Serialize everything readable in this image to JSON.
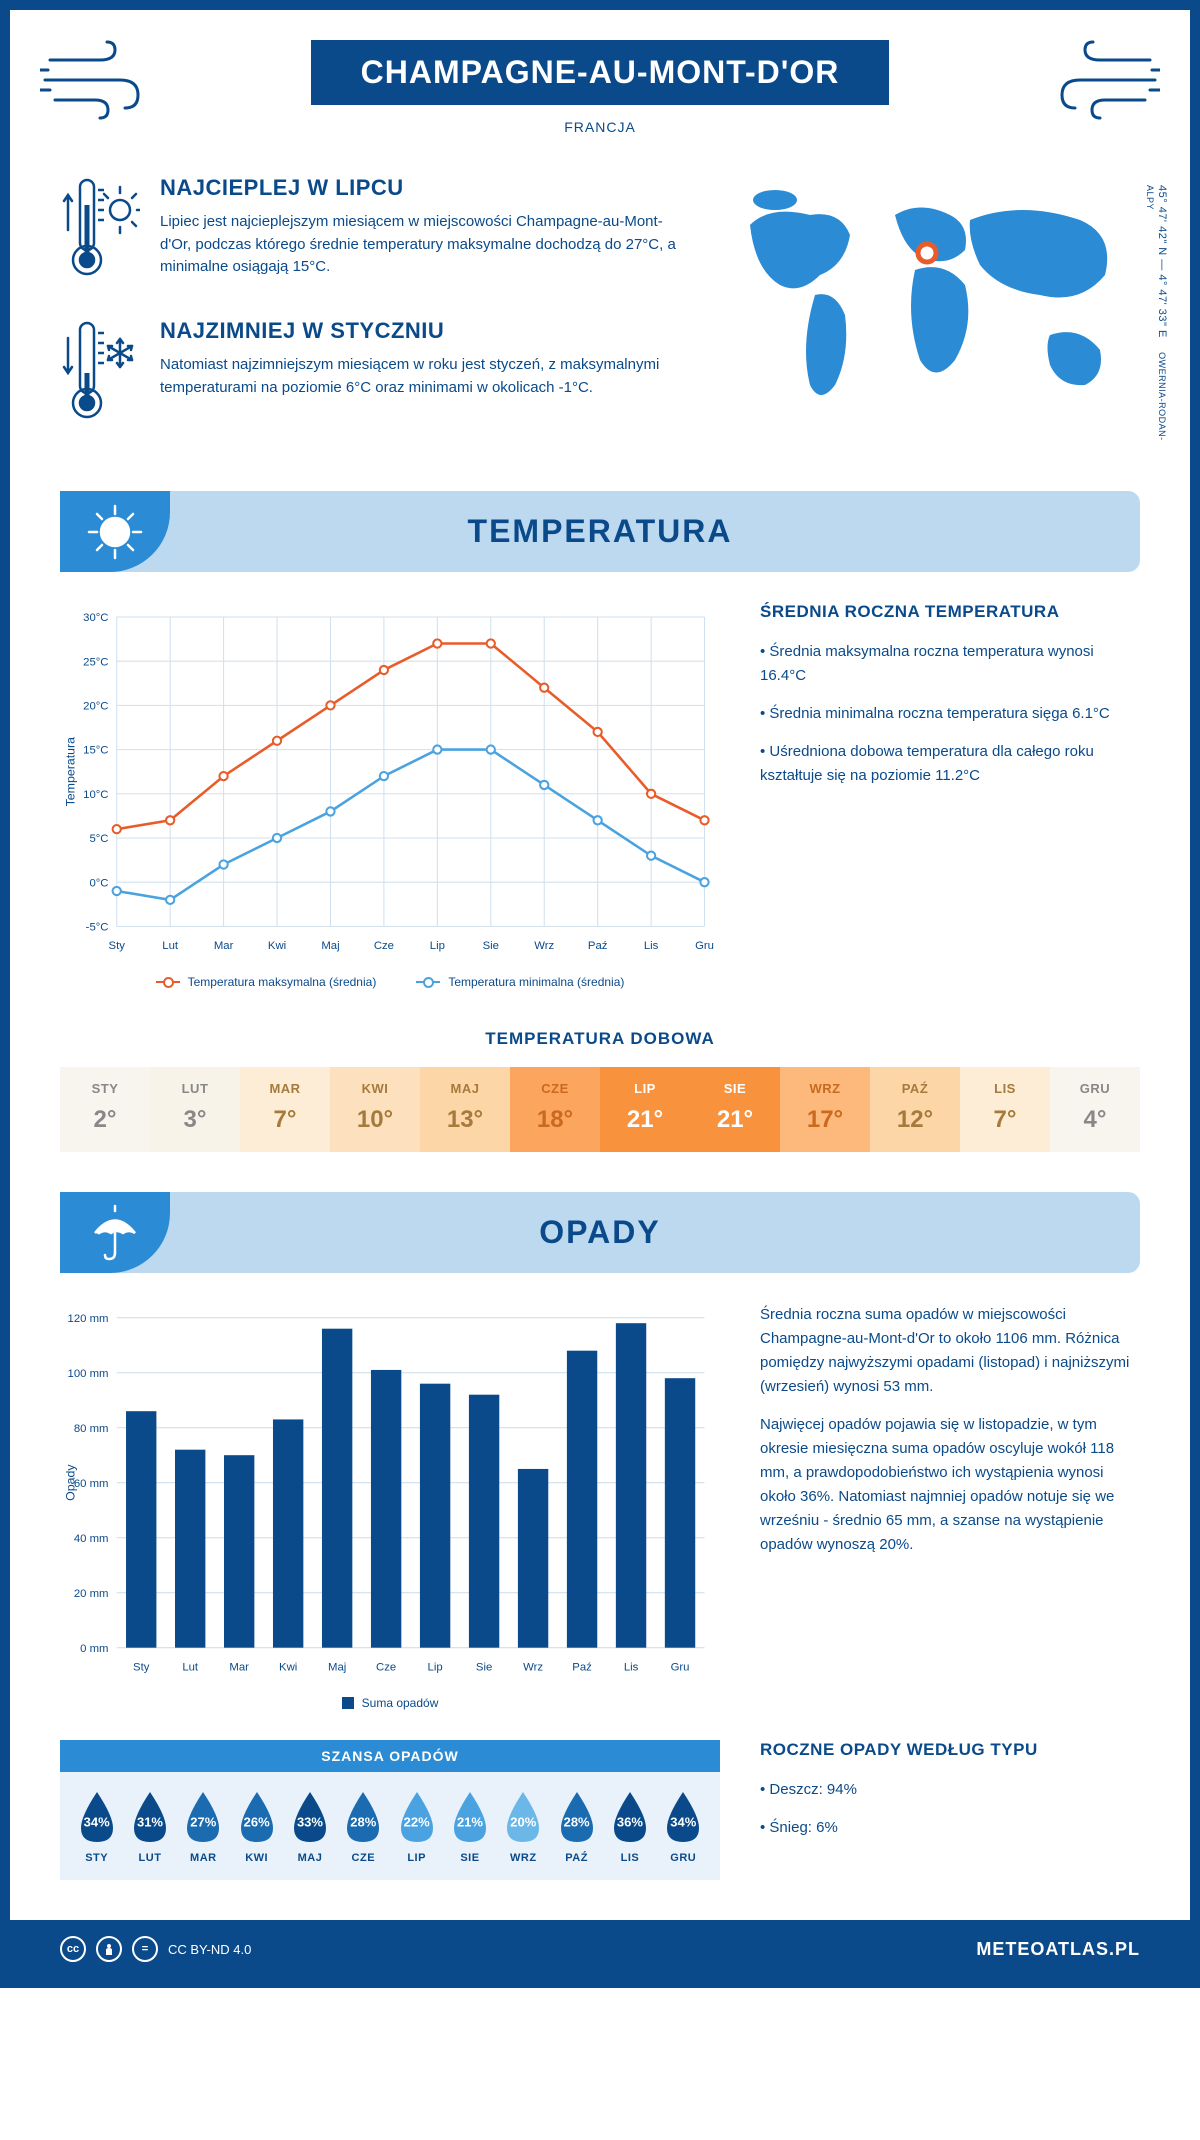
{
  "header": {
    "title": "CHAMPAGNE-AU-MONT-D'OR",
    "country": "FRANCJA",
    "coords": "45° 47' 42\" N — 4° 47' 33\" E",
    "region": "OWERNIA-RODAN-ALPY"
  },
  "facts": {
    "hot": {
      "title": "NAJCIEPLEJ W LIPCU",
      "text": "Lipiec jest najcieplejszym miesiącem w miejscowości Champagne-au-Mont-d'Or, podczas którego średnie temperatury maksymalne dochodzą do 27°C, a minimalne osiągają 15°C."
    },
    "cold": {
      "title": "NAJZIMNIEJ W STYCZNIU",
      "text": "Natomiast najzimniejszym miesiącem w roku jest styczeń, z maksymalnymi temperaturami na poziomie 6°C oraz minimami w okolicach -1°C."
    }
  },
  "temperature": {
    "section_title": "TEMPERATURA",
    "chart": {
      "type": "line",
      "months": [
        "Sty",
        "Lut",
        "Mar",
        "Kwi",
        "Maj",
        "Cze",
        "Lip",
        "Sie",
        "Wrz",
        "Paź",
        "Lis",
        "Gru"
      ],
      "max_series": [
        6,
        7,
        12,
        16,
        20,
        24,
        27,
        27,
        22,
        17,
        10,
        7
      ],
      "min_series": [
        -1,
        -2,
        2,
        5,
        8,
        12,
        15,
        15,
        11,
        7,
        3,
        0
      ],
      "max_color": "#e85c2a",
      "min_color": "#4aa3e0",
      "ylim": [
        -5,
        30
      ],
      "ytick_step": 5,
      "y_axis_title": "Temperatura",
      "grid_color": "#d0e0ee",
      "legend_max": "Temperatura maksymalna (średnia)",
      "legend_min": "Temperatura minimalna (średnia)"
    },
    "side": {
      "heading": "ŚREDNIA ROCZNA TEMPERATURA",
      "bullets": [
        "• Średnia maksymalna roczna temperatura wynosi 16.4°C",
        "• Średnia minimalna roczna temperatura sięga 6.1°C",
        "• Uśredniona dobowa temperatura dla całego roku kształtuje się na poziomie 11.2°C"
      ]
    },
    "daily": {
      "heading": "TEMPERATURA DOBOWA",
      "months": [
        "STY",
        "LUT",
        "MAR",
        "KWI",
        "MAJ",
        "CZE",
        "LIP",
        "SIE",
        "WRZ",
        "PAŹ",
        "LIS",
        "GRU"
      ],
      "values": [
        "2°",
        "3°",
        "7°",
        "10°",
        "13°",
        "18°",
        "21°",
        "21°",
        "17°",
        "12°",
        "7°",
        "4°"
      ],
      "bg_colors": [
        "#f8f5ee",
        "#f8f3e8",
        "#fdecd6",
        "#fde1bf",
        "#fdd6a8",
        "#fca55e",
        "#f8923c",
        "#f8923c",
        "#fcb97b",
        "#fdd6a8",
        "#fdecd6",
        "#f8f5ee"
      ],
      "text_colors": [
        "#888",
        "#888",
        "#a67a3c",
        "#a67a3c",
        "#a67a3c",
        "#c96a1e",
        "#fff",
        "#fff",
        "#c96a1e",
        "#a67a3c",
        "#a67a3c",
        "#888"
      ]
    }
  },
  "precipitation": {
    "section_title": "OPADY",
    "chart": {
      "type": "bar",
      "months": [
        "Sty",
        "Lut",
        "Mar",
        "Kwi",
        "Maj",
        "Cze",
        "Lip",
        "Sie",
        "Wrz",
        "Paź",
        "Lis",
        "Gru"
      ],
      "values": [
        86,
        72,
        70,
        83,
        116,
        101,
        96,
        92,
        65,
        108,
        118,
        98
      ],
      "bar_color": "#0a4a8a",
      "ylim": [
        0,
        120
      ],
      "ytick_step": 20,
      "y_axis_title": "Opady",
      "grid_color": "#d0e0ee",
      "legend": "Suma opadów"
    },
    "side": {
      "p1": "Średnia roczna suma opadów w miejscowości Champagne-au-Mont-d'Or to około 1106 mm. Różnica pomiędzy najwyższymi opadami (listopad) i najniższymi (wrzesień) wynosi 53 mm.",
      "p2": "Najwięcej opadów pojawia się w listopadzie, w tym okresie miesięczna suma opadów oscyluje wokół 118 mm, a prawdopodobieństwo ich wystąpienia wynosi około 36%. Natomiast najmniej opadów notuje się we wrześniu - średnio 65 mm, a szanse na wystąpienie opadów wynoszą 20%."
    },
    "chance": {
      "heading": "SZANSA OPADÓW",
      "months": [
        "STY",
        "LUT",
        "MAR",
        "KWI",
        "MAJ",
        "CZE",
        "LIP",
        "SIE",
        "WRZ",
        "PAŹ",
        "LIS",
        "GRU"
      ],
      "values": [
        "34%",
        "31%",
        "27%",
        "26%",
        "33%",
        "28%",
        "22%",
        "21%",
        "20%",
        "28%",
        "36%",
        "34%"
      ],
      "colors": [
        "#0a4a8a",
        "#0a4a8a",
        "#1a6bb0",
        "#1a6bb0",
        "#0a4a8a",
        "#1a6bb0",
        "#4aa3e0",
        "#4aa3e0",
        "#6bb8e8",
        "#1a6bb0",
        "#0a4a8a",
        "#0a4a8a"
      ]
    },
    "by_type": {
      "heading": "ROCZNE OPADY WEDŁUG TYPU",
      "lines": [
        "• Deszcz: 94%",
        "• Śnieg: 6%"
      ]
    }
  },
  "footer": {
    "license": "CC BY-ND 4.0",
    "site": "METEOATLAS.PL"
  },
  "colors": {
    "primary": "#0a4a8a",
    "banner_bg": "#bcd9f0",
    "accent": "#2b8bd4"
  }
}
